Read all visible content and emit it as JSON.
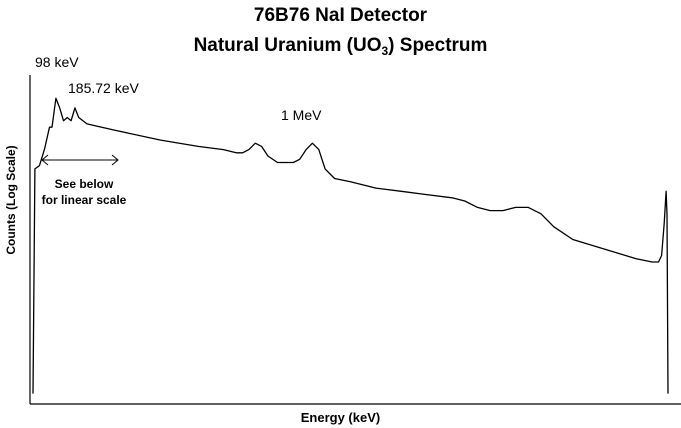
{
  "title_line1": "76B76 NaI Detector",
  "title_line2_pre": "Natural Uranium (UO",
  "title_line2_sub": "3",
  "title_line2_post": ") Spectrum",
  "annotations": {
    "peak1": "98 keV",
    "peak2": "185.72 keV",
    "peak3": "1 MeV",
    "note_line1": "See below",
    "note_line2": "for linear scale"
  },
  "chart_data": {
    "type": "line",
    "title": "76B76 NaI Detector — Natural Uranium (UO3) Spectrum",
    "xlabel": "Energy (keV)",
    "ylabel": "Counts (Log Scale)",
    "y_scale": "log",
    "x_ticks": "none",
    "y_ticks": "none",
    "grid": false,
    "legend": "none",
    "line_color": "#000000",
    "series": [
      {
        "values": [
          [
            0.0,
            0.02
          ],
          [
            0.003,
            0.72
          ],
          [
            0.01,
            0.73
          ],
          [
            0.018,
            0.78
          ],
          [
            0.026,
            0.85
          ],
          [
            0.03,
            0.85
          ],
          [
            0.036,
            0.94
          ],
          [
            0.042,
            0.91
          ],
          [
            0.048,
            0.87
          ],
          [
            0.054,
            0.88
          ],
          [
            0.06,
            0.87
          ],
          [
            0.066,
            0.91
          ],
          [
            0.072,
            0.88
          ],
          [
            0.085,
            0.86
          ],
          [
            0.13,
            0.84
          ],
          [
            0.2,
            0.81
          ],
          [
            0.26,
            0.79
          ],
          [
            0.3,
            0.78
          ],
          [
            0.32,
            0.77
          ],
          [
            0.33,
            0.77
          ],
          [
            0.34,
            0.78
          ],
          [
            0.35,
            0.8
          ],
          [
            0.36,
            0.79
          ],
          [
            0.37,
            0.76
          ],
          [
            0.385,
            0.74
          ],
          [
            0.41,
            0.74
          ],
          [
            0.42,
            0.75
          ],
          [
            0.43,
            0.78
          ],
          [
            0.44,
            0.8
          ],
          [
            0.45,
            0.78
          ],
          [
            0.46,
            0.72
          ],
          [
            0.475,
            0.69
          ],
          [
            0.5,
            0.68
          ],
          [
            0.54,
            0.66
          ],
          [
            0.58,
            0.65
          ],
          [
            0.62,
            0.64
          ],
          [
            0.66,
            0.63
          ],
          [
            0.68,
            0.62
          ],
          [
            0.7,
            0.6
          ],
          [
            0.72,
            0.59
          ],
          [
            0.74,
            0.59
          ],
          [
            0.76,
            0.6
          ],
          [
            0.78,
            0.6
          ],
          [
            0.8,
            0.58
          ],
          [
            0.82,
            0.54
          ],
          [
            0.85,
            0.5
          ],
          [
            0.9,
            0.47
          ],
          [
            0.95,
            0.44
          ],
          [
            0.975,
            0.43
          ],
          [
            0.985,
            0.43
          ],
          [
            0.99,
            0.45
          ],
          [
            0.994,
            0.55
          ],
          [
            0.997,
            0.65
          ],
          [
            0.9985,
            0.58
          ],
          [
            1.0,
            0.02
          ]
        ]
      }
    ],
    "annotations": [
      {
        "text": "98 keV"
      },
      {
        "text": "185.72 keV"
      },
      {
        "text": "1 MeV"
      },
      {
        "text": "See below for linear scale",
        "arrow": "double-headed"
      }
    ]
  }
}
